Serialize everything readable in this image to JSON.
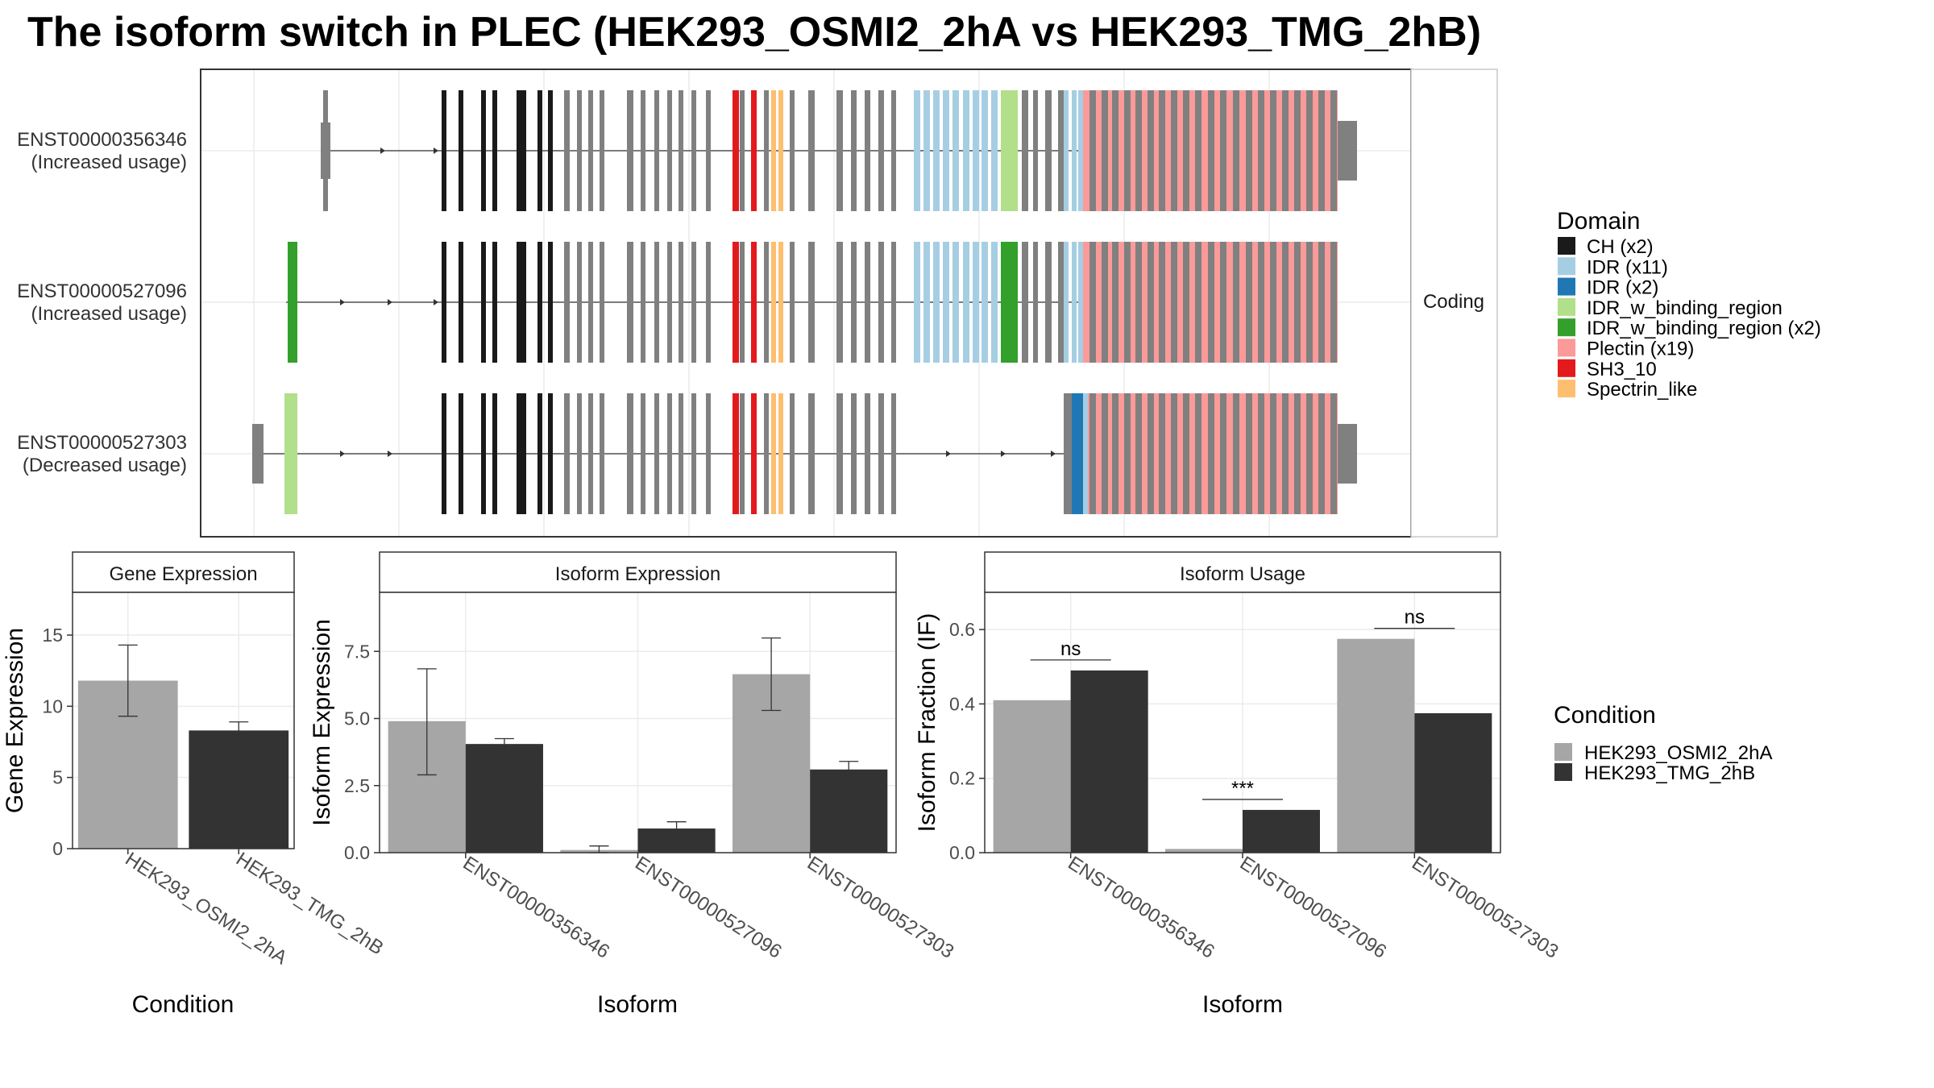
{
  "title": "The isoform switch in PLEC (HEK293_OSMI2_2hA vs HEK293_TMG_2hB)",
  "structure": {
    "facet_label": "Coding",
    "isoforms": [
      {
        "id": "ENST00000356346",
        "label_line1": "ENST00000356346",
        "label_line2": "(Increased usage)"
      },
      {
        "id": "ENST00000527096",
        "label_line1": "ENST00000527096",
        "label_line2": "(Increased usage)"
      },
      {
        "id": "ENST00000527303",
        "label_line1": "ENST00000527303",
        "label_line2": "(Decreased usage)"
      }
    ],
    "domain_legend_title": "Domain",
    "domains": [
      {
        "name": "CH (x2)",
        "color": "#1a1a1a"
      },
      {
        "name": "IDR (x11)",
        "color": "#a6cee3"
      },
      {
        "name": "IDR (x2)",
        "color": "#1f78b4"
      },
      {
        "name": "IDR_w_binding_region",
        "color": "#b2df8a"
      },
      {
        "name": "IDR_w_binding_region (x2)",
        "color": "#33a02c"
      },
      {
        "name": "Plectin (x19)",
        "color": "#fb9a99"
      },
      {
        "name": "SH3_10",
        "color": "#e31a1c"
      },
      {
        "name": "Spectrin_like",
        "color": "#fdbf6f"
      }
    ]
  },
  "condition_legend": {
    "title": "Condition",
    "items": [
      {
        "name": "HEK293_OSMI2_2hA",
        "color": "#a6a6a6"
      },
      {
        "name": "HEK293_TMG_2hB",
        "color": "#333333"
      }
    ]
  },
  "chart_data": [
    {
      "type": "bar",
      "strip": "Gene Expression",
      "xlabel": "Condition",
      "ylabel": "Gene Expression",
      "ylim": [
        0,
        18
      ],
      "yticks": [
        "0",
        "5",
        "10",
        "15"
      ],
      "categories": [
        "HEK293_OSMI2_2hA",
        "HEK293_TMG_2hB"
      ],
      "values": [
        11.8,
        8.3
      ],
      "errors": [
        [
          9.3,
          14.3
        ],
        [
          7.6,
          8.9
        ]
      ]
    },
    {
      "type": "bar",
      "strip": "Isoform Expression",
      "xlabel": "Isoform",
      "ylabel": "Isoform Expression",
      "ylim": [
        0,
        9.7
      ],
      "yticks": [
        "0.0",
        "2.5",
        "5.0",
        "7.5"
      ],
      "categories": [
        "ENST00000356346",
        "ENST00000527096",
        "ENST00000527303"
      ],
      "series": [
        {
          "name": "HEK293_OSMI2_2hA",
          "values": [
            4.9,
            0.1,
            6.65
          ],
          "errors": [
            [
              2.9,
              6.85
            ],
            [
              0.0,
              0.25
            ],
            [
              5.3,
              8.0
            ]
          ]
        },
        {
          "name": "HEK293_TMG_2hB",
          "values": [
            4.05,
            0.9,
            3.1
          ],
          "errors": [
            [
              3.85,
              4.25
            ],
            [
              0.65,
              1.15
            ],
            [
              2.85,
              3.4
            ]
          ]
        }
      ]
    },
    {
      "type": "bar",
      "strip": "Isoform Usage",
      "xlabel": "Isoform",
      "ylabel": "Isoform Fraction (IF)",
      "ylim": [
        0,
        0.7
      ],
      "yticks": [
        "0.0",
        "0.2",
        "0.4",
        "0.6"
      ],
      "categories": [
        "ENST00000356346",
        "ENST00000527096",
        "ENST00000527303"
      ],
      "series": [
        {
          "name": "HEK293_OSMI2_2hA",
          "values": [
            0.41,
            0.01,
            0.575
          ]
        },
        {
          "name": "HEK293_TMG_2hB",
          "values": [
            0.49,
            0.115,
            0.375
          ]
        }
      ],
      "significance": [
        "ns",
        "***",
        "ns"
      ]
    }
  ]
}
